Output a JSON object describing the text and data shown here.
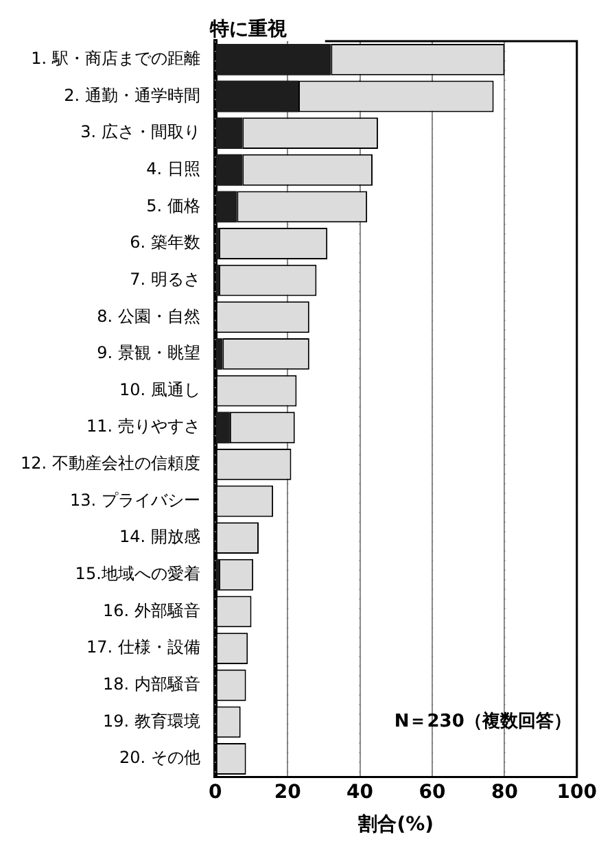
{
  "chart_data": {
    "type": "bar",
    "orientation": "horizontal",
    "stacked": true,
    "xlabel": "割合(%)",
    "categories": [
      "1. 駅・商店までの距離",
      "2. 通勤・通学時間",
      "3. 広さ・間取り",
      "4. 日照",
      "5. 価格",
      "6. 築年数",
      "7. 明るさ",
      "8. 公園・自然",
      "9. 景観・眺望",
      "10. 風通し",
      "11. 売りやすさ",
      "12. 不動産会社の信頼度",
      "13. プライバシー",
      "14. 開放感",
      "15.地域への愛着",
      "16. 外部騒音",
      "17. 仕様・設備",
      "18. 内部騒音",
      "19. 教育環境",
      "20. その他"
    ],
    "series": [
      {
        "name": "特に重視",
        "color": "#1e1e1e",
        "values": [
          32,
          23,
          7.5,
          7.5,
          6,
          1,
          1,
          0,
          2,
          0,
          4,
          0,
          0,
          0,
          1,
          0,
          0,
          0,
          0,
          0
        ]
      },
      {
        "color": "#dcdcdc",
        "values": [
          48,
          54,
          37.5,
          36,
          36,
          30,
          27,
          26,
          24,
          22.5,
          18,
          21,
          16,
          12,
          9.5,
          10,
          9,
          8.5,
          7,
          8.5
        ]
      }
    ],
    "xlim": [
      0,
      100
    ],
    "xticks": [
      0,
      20,
      40,
      60,
      80,
      100
    ],
    "grid": "x",
    "legend": false,
    "annotations": [
      "N＝230（複数回答）"
    ]
  }
}
